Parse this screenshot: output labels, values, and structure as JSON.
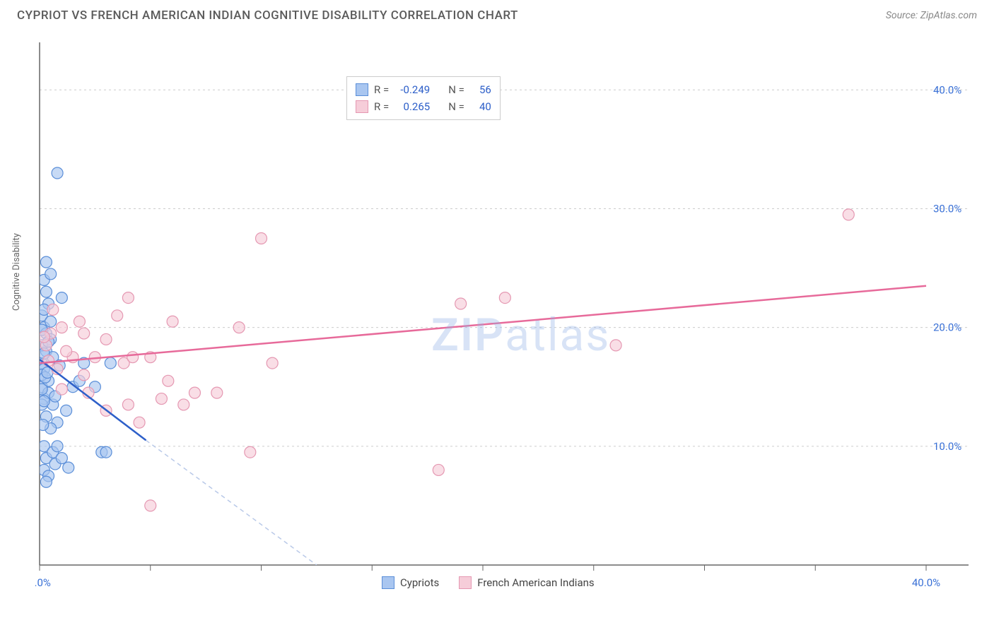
{
  "header": {
    "title": "CYPRIOT VS FRENCH AMERICAN INDIAN COGNITIVE DISABILITY CORRELATION CHART",
    "source": "Source: ZipAtlas.com"
  },
  "chart": {
    "type": "scatter",
    "y_label": "Cognitive Disability",
    "background_color": "#ffffff",
    "grid_color": "#cccccc",
    "grid_dash": "3 4",
    "xlim": [
      0,
      40
    ],
    "ylim": [
      0,
      44
    ],
    "y_ticks": [
      {
        "val": 10,
        "label": "10.0%"
      },
      {
        "val": 20,
        "label": "20.0%"
      },
      {
        "val": 30,
        "label": "30.0%"
      },
      {
        "val": 40,
        "label": "40.0%"
      }
    ],
    "x_ticks_major": [
      0,
      5,
      10,
      15,
      20,
      25,
      30,
      35,
      40
    ],
    "x_tick_labels": [
      {
        "val": 0,
        "label": "0.0%"
      },
      {
        "val": 40,
        "label": "40.0%"
      }
    ],
    "watermark": "ZIPatlas",
    "series": [
      {
        "name": "Cypriots",
        "color_fill": "#a9c6f0",
        "color_stroke": "#5a8ed8",
        "marker_radius": 8,
        "marker_opacity": 0.65,
        "r_value": "-0.249",
        "n_value": "56",
        "trend": {
          "solid": {
            "x1": 0,
            "y1": 17.3,
            "x2": 4.8,
            "y2": 10.5,
            "color": "#2d5fc9",
            "width": 2.5
          },
          "dashed": {
            "x1": 4.8,
            "y1": 10.5,
            "x2": 12.5,
            "y2": 0,
            "color": "#b9c9e8",
            "width": 1.5
          }
        },
        "points": [
          [
            0.1,
            17.0
          ],
          [
            0.2,
            20.0
          ],
          [
            0.3,
            19.5
          ],
          [
            0.1,
            15.0
          ],
          [
            0.2,
            14.0
          ],
          [
            0.4,
            22.0
          ],
          [
            0.1,
            13.5
          ],
          [
            0.3,
            18.0
          ],
          [
            0.2,
            16.5
          ],
          [
            0.5,
            19.0
          ],
          [
            0.1,
            21.0
          ],
          [
            0.8,
            33.0
          ],
          [
            0.3,
            12.5
          ],
          [
            0.2,
            10.0
          ],
          [
            0.6,
            17.5
          ],
          [
            0.4,
            15.5
          ],
          [
            0.1,
            18.5
          ],
          [
            0.3,
            23.0
          ],
          [
            1.0,
            22.5
          ],
          [
            0.2,
            24.0
          ],
          [
            0.5,
            20.5
          ],
          [
            0.4,
            14.5
          ],
          [
            0.1,
            16.0
          ],
          [
            1.5,
            15.0
          ],
          [
            1.2,
            13.0
          ],
          [
            0.3,
            9.0
          ],
          [
            0.7,
            8.5
          ],
          [
            1.8,
            15.5
          ],
          [
            2.5,
            15.0
          ],
          [
            0.2,
            8.0
          ],
          [
            0.4,
            7.5
          ],
          [
            0.6,
            9.5
          ],
          [
            0.8,
            10.0
          ],
          [
            1.0,
            9.0
          ],
          [
            0.3,
            7.0
          ],
          [
            0.5,
            24.5
          ],
          [
            0.1,
            19.8
          ],
          [
            0.2,
            17.8
          ],
          [
            0.4,
            18.8
          ],
          [
            0.6,
            13.5
          ],
          [
            0.8,
            12.0
          ],
          [
            0.2,
            13.8
          ],
          [
            0.3,
            25.5
          ],
          [
            0.1,
            14.8
          ],
          [
            0.5,
            11.5
          ],
          [
            0.7,
            14.2
          ],
          [
            0.9,
            16.8
          ],
          [
            0.2,
            21.5
          ],
          [
            1.3,
            8.2
          ],
          [
            2.0,
            17.0
          ],
          [
            2.8,
            9.5
          ],
          [
            3.0,
            9.5
          ],
          [
            3.2,
            17.0
          ],
          [
            0.15,
            11.8
          ],
          [
            0.25,
            15.8
          ],
          [
            0.35,
            16.2
          ]
        ]
      },
      {
        "name": "French American Indians",
        "color_fill": "#f6cdd9",
        "color_stroke": "#e598b2",
        "marker_radius": 8,
        "marker_opacity": 0.65,
        "r_value": "0.265",
        "n_value": "40",
        "trend": {
          "line": {
            "x1": 0,
            "y1": 17.0,
            "x2": 40,
            "y2": 23.5,
            "color": "#e76a9a",
            "width": 2.5
          }
        },
        "points": [
          [
            0.5,
            19.5
          ],
          [
            1.0,
            20.0
          ],
          [
            1.5,
            17.5
          ],
          [
            2.0,
            16.0
          ],
          [
            2.5,
            17.5
          ],
          [
            3.0,
            19.0
          ],
          [
            4.0,
            22.5
          ],
          [
            3.5,
            21.0
          ],
          [
            5.0,
            17.5
          ],
          [
            6.0,
            20.5
          ],
          [
            7.0,
            14.5
          ],
          [
            8.0,
            14.5
          ],
          [
            10.0,
            27.5
          ],
          [
            9.0,
            20.0
          ],
          [
            10.5,
            17.0
          ],
          [
            19.0,
            22.0
          ],
          [
            21.0,
            22.5
          ],
          [
            26.0,
            18.5
          ],
          [
            36.5,
            29.5
          ],
          [
            18.0,
            8.0
          ],
          [
            5.0,
            5.0
          ],
          [
            9.5,
            9.5
          ],
          [
            4.5,
            12.0
          ],
          [
            5.5,
            14.0
          ],
          [
            6.5,
            13.5
          ],
          [
            3.0,
            13.0
          ],
          [
            2.0,
            19.5
          ],
          [
            1.2,
            18.0
          ],
          [
            0.8,
            16.5
          ],
          [
            4.0,
            13.5
          ],
          [
            0.3,
            18.5
          ],
          [
            0.6,
            21.5
          ],
          [
            1.8,
            20.5
          ],
          [
            2.2,
            14.5
          ],
          [
            3.8,
            17.0
          ],
          [
            4.2,
            17.5
          ],
          [
            5.8,
            15.5
          ],
          [
            0.2,
            19.2
          ],
          [
            1.0,
            14.8
          ],
          [
            0.4,
            17.2
          ]
        ]
      }
    ],
    "legend_top": {
      "rows": [
        {
          "swatch": "blue",
          "r_label": "R =",
          "r_val": "-0.249",
          "n_label": "N =",
          "n_val": "56"
        },
        {
          "swatch": "pink",
          "r_label": "R =",
          "r_val": "0.265",
          "n_label": "N =",
          "n_val": "40"
        }
      ]
    },
    "legend_bottom": [
      {
        "swatch": "blue",
        "label": "Cypriots"
      },
      {
        "swatch": "pink",
        "label": "French American Indians"
      }
    ]
  }
}
